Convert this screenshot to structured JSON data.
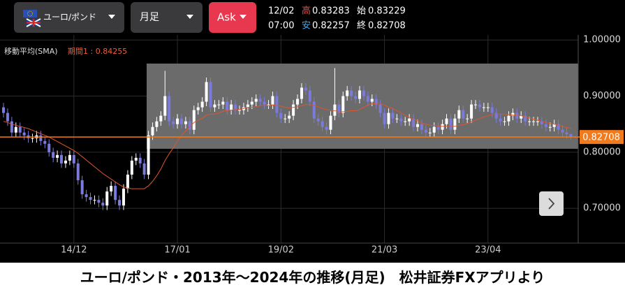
{
  "header": {
    "pair": "ユーロ/ポンド",
    "timeframe": "月足",
    "price_side": "Ask",
    "date": "12/02",
    "time": "07:00",
    "high_label": "高",
    "high": 0.83283,
    "open_label": "始",
    "open": 0.83229,
    "low_label": "安",
    "low": 0.82257,
    "close_label": "終",
    "close": 0.82708
  },
  "caption": "ユーロ/ポンド・2013年〜2024年の推移(月足)　松井証券FXアプリより",
  "chart_data": {
    "type": "candlestick",
    "categories": [
      null,
      null,
      null,
      null,
      null,
      null,
      null,
      null,
      null,
      null,
      null,
      null,
      null,
      null,
      null,
      null,
      null,
      "14/12",
      null,
      null,
      null,
      null,
      null,
      null,
      null,
      null,
      null,
      null,
      null,
      null,
      null,
      null,
      null,
      null,
      null,
      null,
      null,
      null,
      null,
      null,
      null,
      null,
      "17/01",
      null,
      null,
      null,
      null,
      null,
      null,
      null,
      null,
      null,
      null,
      null,
      null,
      null,
      null,
      null,
      null,
      null,
      null,
      null,
      null,
      null,
      null,
      null,
      null,
      "19/02",
      null,
      null,
      null,
      null,
      null,
      null,
      null,
      null,
      null,
      null,
      null,
      null,
      null,
      null,
      null,
      null,
      null,
      null,
      null,
      null,
      null,
      null,
      null,
      null,
      "21/03",
      null,
      null,
      null,
      null,
      null,
      null,
      null,
      null,
      null,
      null,
      null,
      null,
      null,
      null,
      null,
      null,
      null,
      null,
      null,
      null,
      null,
      null,
      null,
      null,
      "23/04",
      null,
      null,
      null,
      null,
      null,
      null,
      null,
      null,
      null,
      null,
      null,
      null,
      null,
      null,
      null,
      null,
      null,
      null,
      null,
      null
    ],
    "open": [
      0.88,
      0.87,
      0.855,
      0.835,
      0.845,
      0.835,
      0.83,
      0.825,
      0.825,
      0.83,
      0.82,
      0.815,
      0.8,
      0.79,
      0.795,
      0.78,
      0.785,
      0.795,
      0.78,
      0.75,
      0.725,
      0.72,
      0.715,
      0.715,
      0.71,
      0.705,
      0.73,
      0.74,
      0.715,
      0.705,
      0.735,
      0.76,
      0.785,
      0.79,
      0.78,
      0.76,
      0.83,
      0.845,
      0.855,
      0.865,
      0.9,
      0.855,
      0.85,
      0.86,
      0.85,
      0.855,
      0.84,
      0.875,
      0.88,
      0.89,
      0.925,
      0.88,
      0.885,
      0.885,
      0.89,
      0.875,
      0.885,
      0.875,
      0.875,
      0.88,
      0.885,
      0.89,
      0.895,
      0.89,
      0.885,
      0.885,
      0.9,
      0.87,
      0.86,
      0.86,
      0.865,
      0.885,
      0.895,
      0.915,
      0.91,
      0.89,
      0.86,
      0.855,
      0.845,
      0.84,
      0.865,
      0.885,
      0.87,
      0.9,
      0.91,
      0.9,
      0.895,
      0.91,
      0.9,
      0.89,
      0.895,
      0.885,
      0.87,
      0.85,
      0.87,
      0.86,
      0.86,
      0.855,
      0.855,
      0.86,
      0.845,
      0.85,
      0.84,
      0.835,
      0.835,
      0.845,
      0.84,
      0.85,
      0.86,
      0.84,
      0.86,
      0.875,
      0.86,
      0.86,
      0.885,
      0.885,
      0.88,
      0.88,
      0.88,
      0.87,
      0.86,
      0.855,
      0.855,
      0.865,
      0.87,
      0.86,
      0.865,
      0.855,
      0.855,
      0.855,
      0.855,
      0.85,
      0.845,
      0.845,
      0.85,
      0.84,
      0.835,
      0.83229
    ],
    "high": [
      0.888,
      0.878,
      0.863,
      0.853,
      0.853,
      0.843,
      0.838,
      0.833,
      0.838,
      0.838,
      0.828,
      0.823,
      0.808,
      0.803,
      0.803,
      0.793,
      0.803,
      0.803,
      0.788,
      0.758,
      0.733,
      0.728,
      0.723,
      0.723,
      0.718,
      0.738,
      0.748,
      0.748,
      0.723,
      0.743,
      0.768,
      0.793,
      0.798,
      0.798,
      0.788,
      0.838,
      0.853,
      0.863,
      0.873,
      0.945,
      0.908,
      0.863,
      0.868,
      0.868,
      0.863,
      0.863,
      0.883,
      0.888,
      0.898,
      0.933,
      0.933,
      0.893,
      0.893,
      0.898,
      0.898,
      0.893,
      0.893,
      0.883,
      0.888,
      0.893,
      0.898,
      0.903,
      0.903,
      0.898,
      0.893,
      0.908,
      0.908,
      0.878,
      0.868,
      0.873,
      0.893,
      0.903,
      0.923,
      0.923,
      0.918,
      0.898,
      0.868,
      0.863,
      0.853,
      0.873,
      0.95,
      0.893,
      0.908,
      0.918,
      0.918,
      0.908,
      0.918,
      0.918,
      0.908,
      0.903,
      0.903,
      0.893,
      0.878,
      0.878,
      0.878,
      0.868,
      0.868,
      0.863,
      0.868,
      0.868,
      0.858,
      0.858,
      0.848,
      0.843,
      0.853,
      0.853,
      0.858,
      0.868,
      0.868,
      0.868,
      0.883,
      0.883,
      0.868,
      0.893,
      0.893,
      0.893,
      0.888,
      0.888,
      0.888,
      0.878,
      0.868,
      0.863,
      0.873,
      0.878,
      0.878,
      0.873,
      0.873,
      0.863,
      0.863,
      0.863,
      0.863,
      0.858,
      0.853,
      0.858,
      0.858,
      0.848,
      0.843,
      0.83283
    ],
    "low": [
      0.862,
      0.847,
      0.827,
      0.827,
      0.827,
      0.822,
      0.817,
      0.817,
      0.817,
      0.812,
      0.807,
      0.792,
      0.782,
      0.782,
      0.772,
      0.772,
      0.777,
      0.772,
      0.742,
      0.717,
      0.712,
      0.707,
      0.707,
      0.702,
      0.697,
      0.697,
      0.722,
      0.707,
      0.697,
      0.697,
      0.727,
      0.752,
      0.777,
      0.772,
      0.752,
      0.752,
      0.822,
      0.837,
      0.847,
      0.857,
      0.847,
      0.842,
      0.842,
      0.842,
      0.842,
      0.832,
      0.832,
      0.867,
      0.872,
      0.882,
      0.872,
      0.872,
      0.877,
      0.877,
      0.867,
      0.867,
      0.867,
      0.867,
      0.867,
      0.872,
      0.877,
      0.882,
      0.882,
      0.877,
      0.877,
      0.877,
      0.862,
      0.852,
      0.852,
      0.852,
      0.857,
      0.877,
      0.887,
      0.902,
      0.882,
      0.852,
      0.847,
      0.837,
      0.832,
      0.832,
      0.857,
      0.862,
      0.862,
      0.892,
      0.892,
      0.887,
      0.887,
      0.892,
      0.882,
      0.882,
      0.877,
      0.862,
      0.842,
      0.842,
      0.852,
      0.852,
      0.847,
      0.847,
      0.847,
      0.837,
      0.837,
      0.832,
      0.827,
      0.827,
      0.827,
      0.832,
      0.832,
      0.842,
      0.832,
      0.832,
      0.852,
      0.852,
      0.852,
      0.852,
      0.877,
      0.872,
      0.872,
      0.872,
      0.862,
      0.852,
      0.847,
      0.847,
      0.847,
      0.857,
      0.852,
      0.852,
      0.847,
      0.847,
      0.847,
      0.847,
      0.842,
      0.837,
      0.837,
      0.837,
      0.832,
      0.827,
      0.824,
      0.82257
    ],
    "close": [
      0.87,
      0.855,
      0.835,
      0.845,
      0.835,
      0.83,
      0.825,
      0.825,
      0.83,
      0.82,
      0.815,
      0.8,
      0.79,
      0.795,
      0.78,
      0.785,
      0.795,
      0.78,
      0.75,
      0.725,
      0.72,
      0.715,
      0.715,
      0.71,
      0.705,
      0.73,
      0.74,
      0.715,
      0.705,
      0.735,
      0.76,
      0.785,
      0.79,
      0.78,
      0.76,
      0.83,
      0.845,
      0.855,
      0.865,
      0.9,
      0.855,
      0.85,
      0.86,
      0.85,
      0.855,
      0.84,
      0.875,
      0.88,
      0.89,
      0.925,
      0.88,
      0.885,
      0.885,
      0.89,
      0.875,
      0.885,
      0.875,
      0.875,
      0.88,
      0.885,
      0.89,
      0.895,
      0.89,
      0.885,
      0.885,
      0.9,
      0.87,
      0.86,
      0.86,
      0.865,
      0.885,
      0.895,
      0.915,
      0.91,
      0.89,
      0.86,
      0.855,
      0.845,
      0.84,
      0.865,
      0.885,
      0.87,
      0.9,
      0.91,
      0.9,
      0.895,
      0.91,
      0.9,
      0.89,
      0.895,
      0.885,
      0.87,
      0.85,
      0.87,
      0.86,
      0.86,
      0.855,
      0.855,
      0.86,
      0.845,
      0.85,
      0.84,
      0.835,
      0.835,
      0.845,
      0.84,
      0.85,
      0.86,
      0.84,
      0.86,
      0.875,
      0.86,
      0.86,
      0.885,
      0.885,
      0.88,
      0.88,
      0.88,
      0.87,
      0.86,
      0.855,
      0.855,
      0.865,
      0.87,
      0.86,
      0.865,
      0.855,
      0.855,
      0.855,
      0.855,
      0.85,
      0.845,
      0.845,
      0.85,
      0.84,
      0.835,
      0.832,
      0.82708
    ],
    "up_color": "#ffffff",
    "down_color": "#7b7bdc",
    "sma": {
      "name": "移動平均(SMA)",
      "period_label": "期間1 : 0.84255",
      "color": "#e0552c",
      "values": [
        0.855,
        0.853,
        0.85,
        0.848,
        0.846,
        0.844,
        0.842,
        0.839,
        0.836,
        0.833,
        0.83,
        0.827,
        0.823,
        0.819,
        0.815,
        0.811,
        0.807,
        0.803,
        0.798,
        0.792,
        0.786,
        0.78,
        0.774,
        0.768,
        0.762,
        0.757,
        0.752,
        0.747,
        0.742,
        0.738,
        0.736,
        0.735,
        0.735,
        0.735,
        0.735,
        0.74,
        0.748,
        0.758,
        0.77,
        0.785,
        0.797,
        0.808,
        0.82,
        0.83,
        0.838,
        0.845,
        0.853,
        0.857,
        0.86,
        0.866,
        0.868,
        0.868,
        0.87,
        0.873,
        0.874,
        0.875,
        0.876,
        0.876,
        0.878,
        0.88,
        0.88,
        0.881,
        0.883,
        0.883,
        0.883,
        0.884,
        0.883,
        0.882,
        0.88,
        0.879,
        0.88,
        0.881,
        0.883,
        0.885,
        0.885,
        0.883,
        0.881,
        0.878,
        0.876,
        0.875,
        0.874,
        0.872,
        0.872,
        0.873,
        0.874,
        0.874,
        0.876,
        0.88,
        0.884,
        0.886,
        0.887,
        0.887,
        0.884,
        0.88,
        0.878,
        0.874,
        0.87,
        0.866,
        0.862,
        0.858,
        0.856,
        0.852,
        0.85,
        0.848,
        0.848,
        0.847,
        0.846,
        0.846,
        0.846,
        0.846,
        0.848,
        0.849,
        0.851,
        0.854,
        0.857,
        0.86,
        0.863,
        0.865,
        0.867,
        0.868,
        0.868,
        0.867,
        0.867,
        0.866,
        0.866,
        0.865,
        0.863,
        0.861,
        0.859,
        0.857,
        0.855,
        0.853,
        0.851,
        0.85,
        0.848,
        0.846,
        0.844,
        0.84255
      ]
    },
    "last_price": {
      "value": 0.82708,
      "label": "0.82708"
    },
    "last_price_color": "#f07a1c",
    "ylim": [
      0.638,
      1.009
    ],
    "yticks": [
      {
        "value": 0.7,
        "label": "0.70000"
      },
      {
        "value": 0.8,
        "label": "0.80000"
      },
      {
        "value": 0.9,
        "label": "0.90000"
      },
      {
        "value": 1,
        "label": "1.00000"
      }
    ],
    "grid": true
  }
}
